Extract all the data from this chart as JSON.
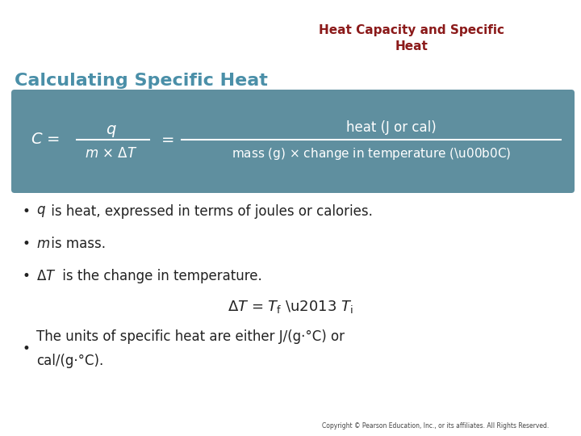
{
  "title": "Heat Capacity and Specific\nHeat",
  "title_color": "#8B1A1A",
  "title_fontsize": 11,
  "subtitle": "Calculating Specific Heat",
  "subtitle_color": "#4a8fa8",
  "subtitle_fontsize": 16,
  "box_color": "#5f8f9f",
  "box_text_color": "#ffffff",
  "bullet_color": "#222222",
  "copyright": "Copyright © Pearson Education, Inc., or its affiliates. All Rights Reserved.",
  "bg_color": "#ffffff"
}
